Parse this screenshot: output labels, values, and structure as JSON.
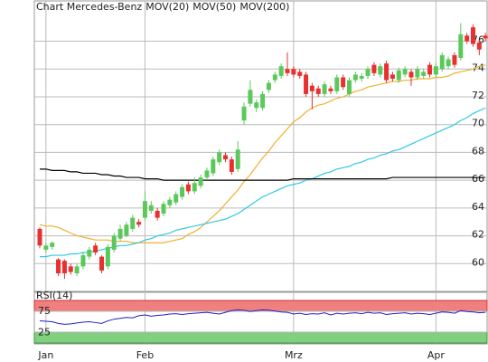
{
  "chart_data": [
    {
      "type": "candlestick",
      "title": "Chart Mercedes-Benz",
      "title_color": "#888888",
      "categories": [
        null,
        "Jan",
        null,
        null,
        null,
        null,
        null,
        null,
        null,
        null,
        null,
        null,
        null,
        null,
        null,
        null,
        null,
        "Feb",
        null,
        null,
        null,
        null,
        null,
        null,
        null,
        null,
        null,
        null,
        null,
        null,
        null,
        null,
        null,
        null,
        null,
        null,
        null,
        null,
        null,
        null,
        null,
        "Mrz",
        null,
        null,
        null,
        null,
        null,
        null,
        null,
        null,
        null,
        null,
        null,
        null,
        null,
        null,
        null,
        null,
        null,
        null,
        null,
        null,
        null,
        null,
        "Apr",
        null,
        null,
        null,
        null,
        null,
        null,
        null,
        null
      ],
      "open": [
        62.5,
        61.0,
        61.2,
        60.3,
        60.2,
        59.8,
        59.3,
        59.8,
        60.5,
        61.3,
        60.5,
        59.8,
        61.0,
        61.8,
        62.0,
        62.5,
        63.0,
        63.3,
        63.8,
        63.8,
        63.6,
        64.2,
        64.4,
        64.8,
        65.7,
        65.2,
        65.6,
        66.2,
        66.5,
        67.3,
        67.8,
        67.5,
        66.8,
        70.3,
        71.5,
        71.2,
        71.2,
        72.5,
        73.2,
        73.5,
        74.0,
        74.0,
        73.8,
        73.6,
        72.8,
        72.6,
        72.2,
        72.6,
        72.4,
        73.4,
        72.2,
        73.2,
        73.3,
        73.5,
        74.3,
        73.6,
        74.4,
        73.6,
        73.2,
        73.6,
        73.8,
        73.4,
        73.5,
        74.3,
        73.6,
        74.0,
        74.2,
        75.0,
        74.8,
        76.4,
        77.0,
        75.9,
        76.4
      ],
      "high": [
        62.6,
        61.5,
        61.6,
        60.4,
        60.3,
        60.0,
        60.0,
        60.8,
        61.2,
        61.5,
        60.6,
        61.4,
        62.2,
        62.8,
        63.0,
        63.5,
        63.2,
        65.2,
        64.5,
        64.0,
        64.5,
        64.8,
        65.2,
        65.7,
        65.9,
        66.2,
        66.4,
        66.9,
        67.7,
        68.2,
        68.0,
        67.7,
        68.8,
        71.6,
        73.2,
        71.8,
        72.4,
        73.2,
        73.8,
        74.4,
        75.2,
        74.2,
        74.0,
        73.8,
        73.0,
        72.8,
        73.1,
        72.8,
        73.6,
        73.6,
        73.4,
        73.8,
        73.7,
        74.2,
        74.5,
        74.4,
        74.6,
        73.8,
        74.1,
        74.2,
        74.0,
        74.2,
        74.0,
        74.5,
        74.4,
        75.2,
        74.9,
        75.2,
        77.3,
        76.6,
        77.2,
        76.1,
        76.6
      ],
      "low": [
        61.1,
        60.8,
        61.0,
        59.1,
        58.9,
        59.2,
        59.1,
        59.6,
        60.3,
        60.6,
        59.3,
        59.6,
        60.8,
        61.6,
        61.9,
        62.3,
        62.6,
        63.1,
        63.6,
        63.1,
        63.4,
        64.0,
        64.2,
        64.6,
        65.0,
        65.0,
        65.4,
        66.0,
        66.3,
        67.1,
        67.3,
        66.4,
        66.6,
        70.0,
        71.3,
        70.9,
        71.0,
        72.3,
        73.0,
        73.3,
        73.5,
        73.4,
        73.3,
        72.0,
        71.1,
        72.0,
        72.0,
        72.2,
        72.2,
        72.5,
        72.0,
        73.0,
        73.1,
        73.3,
        73.5,
        73.4,
        73.0,
        73.1,
        73.0,
        73.4,
        72.8,
        73.2,
        73.3,
        73.4,
        73.4,
        73.8,
        74.0,
        74.1,
        74.6,
        75.8,
        75.6,
        75.0,
        76.0
      ],
      "close": [
        61.3,
        61.3,
        61.5,
        59.3,
        59.3,
        59.4,
        59.8,
        60.6,
        61.0,
        60.8,
        59.5,
        61.2,
        62.0,
        62.5,
        62.8,
        63.3,
        62.8,
        64.5,
        64.2,
        63.3,
        64.3,
        64.6,
        65.0,
        65.5,
        65.2,
        65.8,
        66.2,
        66.7,
        67.5,
        68.0,
        67.5,
        66.6,
        68.2,
        71.3,
        72.5,
        71.6,
        72.2,
        73.0,
        73.6,
        74.2,
        73.7,
        73.6,
        73.5,
        72.2,
        72.4,
        72.2,
        72.9,
        72.4,
        73.4,
        72.7,
        73.2,
        73.6,
        73.5,
        74.0,
        73.7,
        74.2,
        73.2,
        73.3,
        73.9,
        74.0,
        73.4,
        74.0,
        73.8,
        73.6,
        74.2,
        75.0,
        74.7,
        74.3,
        76.5,
        76.0,
        75.8,
        75.4,
        76.2
      ],
      "up_color": "#5cc85c",
      "down_color": "#e83030",
      "series": [
        {
          "name": "MOV(20)",
          "color": "#f0b030",
          "values": [
            62.8,
            62.7,
            62.7,
            62.6,
            62.4,
            62.2,
            62.0,
            61.9,
            61.8,
            61.7,
            61.7,
            61.7,
            61.6,
            61.6,
            61.6,
            61.5,
            61.5,
            61.5,
            61.5,
            61.5,
            61.5,
            61.6,
            61.7,
            61.8,
            62.1,
            62.3,
            62.6,
            63.0,
            63.4,
            63.8,
            64.3,
            64.8,
            65.3,
            65.9,
            66.4,
            67.0,
            67.6,
            68.1,
            68.7,
            69.2,
            69.7,
            70.2,
            70.5,
            70.9,
            71.2,
            71.4,
            71.5,
            71.7,
            71.9,
            72.0,
            72.2,
            72.4,
            72.5,
            72.7,
            72.8,
            72.9,
            73.0,
            73.1,
            73.1,
            73.2,
            73.2,
            73.3,
            73.3,
            73.3,
            73.4,
            73.4,
            73.5,
            73.7,
            73.8,
            73.9,
            74.0,
            74.2,
            74.3
          ]
        },
        {
          "name": "MOV(50)",
          "color": "#30c8e8",
          "values": [
            60.5,
            60.5,
            60.6,
            60.6,
            60.6,
            60.7,
            60.7,
            60.8,
            60.8,
            60.9,
            61.0,
            61.1,
            61.2,
            61.3,
            61.3,
            61.4,
            61.5,
            61.7,
            61.8,
            62.0,
            62.1,
            62.2,
            62.4,
            62.5,
            62.6,
            62.7,
            62.8,
            62.9,
            63.0,
            63.1,
            63.2,
            63.4,
            63.6,
            63.9,
            64.2,
            64.5,
            64.8,
            65.0,
            65.2,
            65.4,
            65.6,
            65.7,
            65.8,
            66.0,
            66.1,
            66.3,
            66.5,
            66.6,
            66.8,
            66.9,
            67.0,
            67.2,
            67.3,
            67.5,
            67.6,
            67.8,
            67.9,
            68.1,
            68.2,
            68.4,
            68.6,
            68.8,
            69.0,
            69.2,
            69.4,
            69.6,
            69.8,
            70.0,
            70.3,
            70.5,
            70.8,
            71.0,
            71.2
          ]
        },
        {
          "name": "MOV(200)",
          "color": "#000000",
          "values": [
            66.8,
            66.8,
            66.7,
            66.7,
            66.7,
            66.6,
            66.6,
            66.5,
            66.5,
            66.5,
            66.4,
            66.4,
            66.3,
            66.3,
            66.2,
            66.2,
            66.2,
            66.1,
            66.1,
            66.1,
            66.0,
            66.0,
            66.0,
            66.0,
            66.0,
            66.0,
            66.0,
            66.0,
            66.0,
            66.0,
            66.0,
            66.0,
            66.0,
            66.0,
            66.0,
            66.0,
            66.0,
            66.0,
            66.0,
            66.0,
            66.0,
            66.1,
            66.1,
            66.1,
            66.1,
            66.1,
            66.1,
            66.1,
            66.1,
            66.1,
            66.1,
            66.1,
            66.1,
            66.1,
            66.1,
            66.1,
            66.1,
            66.2,
            66.2,
            66.2,
            66.2,
            66.2,
            66.2,
            66.2,
            66.2,
            66.2,
            66.2,
            66.2,
            66.2,
            66.2,
            66.2,
            66.2,
            66.2
          ]
        }
      ],
      "ylim": [
        58,
        78.9
      ],
      "yticks": [
        60,
        62,
        64,
        66,
        68,
        70,
        72,
        74,
        76
      ],
      "grid": true
    },
    {
      "type": "line",
      "title": "RSI(14)",
      "color": "#2020c0",
      "values": [
        52,
        51,
        50,
        46,
        44,
        45,
        47,
        49,
        50,
        48,
        46,
        52,
        56,
        58,
        60,
        59,
        64,
        66,
        63,
        65,
        66,
        68,
        69,
        67,
        69,
        70,
        71,
        72,
        70,
        68,
        72,
        76,
        78,
        77,
        74,
        76,
        78,
        77,
        75,
        73,
        72,
        68,
        70,
        67,
        69,
        68,
        71,
        66,
        70,
        68,
        70,
        71,
        69,
        72,
        70,
        71,
        67,
        69,
        70,
        71,
        68,
        70,
        69,
        67,
        70,
        73,
        72,
        70,
        76,
        74,
        73,
        71,
        72
      ],
      "ylim": [
        0,
        100
      ],
      "yticks": [
        25,
        75
      ],
      "band_colors": [
        "#80d080",
        "#f08080"
      ]
    }
  ]
}
